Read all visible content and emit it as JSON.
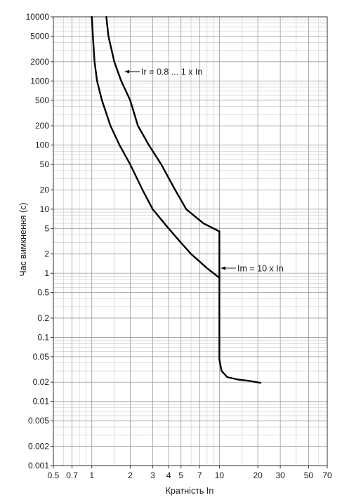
{
  "chart_data": {
    "type": "line",
    "title": "",
    "xlabel": "Кратність In",
    "ylabel": "Час вимкнення (с)",
    "xscale": "log",
    "yscale": "log",
    "xlim": [
      0.5,
      70
    ],
    "ylim": [
      0.001,
      10000
    ],
    "grid": true,
    "x_ticks": [
      0.5,
      0.7,
      1,
      2,
      3,
      4,
      5,
      7,
      10,
      20,
      30,
      50,
      70
    ],
    "x_tick_labels": [
      "0.5",
      "0.7",
      "1",
      "2",
      "3",
      "4",
      "5",
      "7",
      "10",
      "20",
      "30",
      "50",
      "70"
    ],
    "y_ticks": [
      0.001,
      0.002,
      0.005,
      0.01,
      0.02,
      0.05,
      0.1,
      0.2,
      0.5,
      1,
      2,
      5,
      10,
      20,
      50,
      100,
      200,
      500,
      1000,
      2000,
      5000,
      10000
    ],
    "y_tick_labels": [
      "0.001",
      "0.002",
      "0.005",
      "0.01",
      "0.02",
      "0.05",
      "0.1",
      "0.2",
      "0.5",
      "1",
      "2",
      "5",
      "10",
      "20",
      "50",
      "100",
      "200",
      "500",
      "1000",
      "2000",
      "5000",
      "10000"
    ],
    "series": [
      {
        "points": [
          [
            1.0,
            10000
          ],
          [
            1.02,
            5000
          ],
          [
            1.05,
            2000
          ],
          [
            1.1,
            1000
          ],
          [
            1.2,
            500
          ],
          [
            1.4,
            200
          ],
          [
            1.65,
            100
          ],
          [
            2.0,
            50
          ],
          [
            2.5,
            20
          ],
          [
            3.0,
            10
          ],
          [
            4.0,
            5
          ],
          [
            5.0,
            3
          ],
          [
            6.0,
            2
          ],
          [
            8.0,
            1.2
          ],
          [
            10.0,
            0.85
          ]
        ]
      },
      {
        "points": [
          [
            1.3,
            10000
          ],
          [
            1.35,
            5000
          ],
          [
            1.5,
            2000
          ],
          [
            1.7,
            1000
          ],
          [
            2.0,
            500
          ],
          [
            2.3,
            200
          ],
          [
            2.8,
            100
          ],
          [
            3.5,
            50
          ],
          [
            4.5,
            20
          ],
          [
            5.5,
            10
          ],
          [
            7.5,
            6
          ],
          [
            10.0,
            4.5
          ]
        ]
      },
      {
        "points": [
          [
            10.0,
            4.5
          ],
          [
            10.0,
            0.045
          ],
          [
            10.4,
            0.03
          ],
          [
            11.5,
            0.024
          ],
          [
            14,
            0.022
          ],
          [
            17,
            0.021
          ],
          [
            21,
            0.0195
          ]
        ]
      }
    ],
    "annotations": [
      {
        "text": "Ir = 0.8 ... 1 x In",
        "arrow_to": [
          1.8,
          1400
        ]
      },
      {
        "text": "Im = 10 x In",
        "arrow_to": [
          10.2,
          1.2
        ]
      }
    ]
  },
  "colors": {
    "curve": "#000000",
    "grid_major": "#9a9a9a",
    "grid_minor": "#c8c8c8",
    "frame": "#333333"
  }
}
